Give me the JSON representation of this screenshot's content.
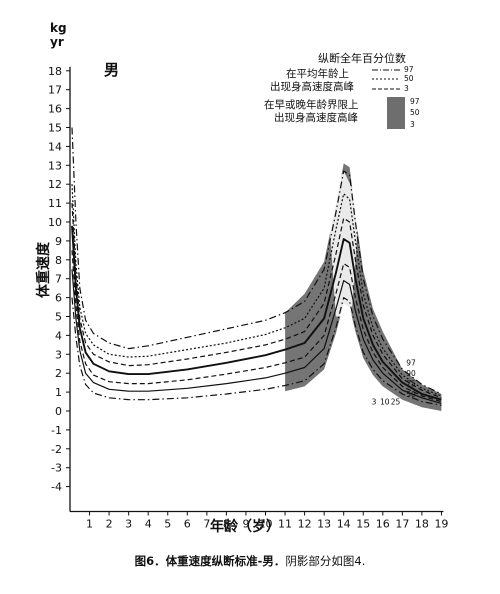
{
  "chart_data": {
    "type": "line",
    "ylabel_unit_top": "kg",
    "ylabel_unit_bottom": "yr",
    "ylabel": "体重速度",
    "xlabel": "年龄（岁）",
    "xlim": [
      0,
      19
    ],
    "ylim": [
      -5,
      18
    ],
    "x_ticks": [
      1,
      2,
      3,
      4,
      5,
      6,
      7,
      8,
      9,
      10,
      11,
      12,
      13,
      14,
      15,
      16,
      17,
      18,
      19
    ],
    "y_ticks": [
      -4,
      -3,
      -2,
      -1,
      0,
      1,
      2,
      3,
      4,
      5,
      6,
      7,
      8,
      9,
      10,
      11,
      12,
      13,
      14,
      15,
      16,
      17,
      18
    ],
    "sex_label": "男",
    "legend": {
      "title": "纵断全年百分位数",
      "group1_line1": "在平均年龄上",
      "group1_line2": "出现身高速度高峰",
      "group1_percentiles": [
        "97",
        "50",
        "3"
      ],
      "group2_line1": "在早或晚年龄界限上",
      "group2_line2": "出现身高速度高峰",
      "group2_percentiles": [
        "97",
        "50",
        "3"
      ]
    },
    "right_labels": [
      "97",
      "90",
      "75",
      "50"
    ],
    "bottom_labels": [
      "3",
      "10",
      "25"
    ],
    "series": [
      {
        "name": "97",
        "style": "dashdot",
        "x": [
          0.1,
          0.3,
          0.5,
          0.8,
          1.2,
          2,
          3,
          4,
          6,
          8,
          10,
          11,
          12,
          13,
          13.6,
          14,
          14.3,
          14.6,
          15,
          15.5,
          16,
          17,
          18,
          19
        ],
        "y": [
          15,
          10,
          6.5,
          4.8,
          4.1,
          3.6,
          3.3,
          3.45,
          3.9,
          4.35,
          4.8,
          5.2,
          5.8,
          7.5,
          10.5,
          12.7,
          12.5,
          10,
          7,
          5,
          3.8,
          2.2,
          1.4,
          0.9
        ]
      },
      {
        "name": "90",
        "style": "dotted",
        "x": [
          0.1,
          0.3,
          0.5,
          0.8,
          1.2,
          2,
          3,
          4,
          6,
          8,
          10,
          11,
          12,
          13,
          13.6,
          14,
          14.3,
          14.6,
          15,
          15.5,
          16,
          17,
          18,
          19
        ],
        "y": [
          12,
          7.8,
          5.5,
          4.1,
          3.5,
          3.0,
          2.85,
          2.9,
          3.25,
          3.6,
          4.05,
          4.4,
          4.9,
          6.5,
          9.6,
          11.5,
          11.2,
          9,
          6.2,
          4.4,
          3.3,
          1.9,
          1.2,
          0.8
        ]
      },
      {
        "name": "75",
        "style": "dashed",
        "x": [
          0.1,
          0.3,
          0.5,
          0.8,
          1.2,
          2,
          3,
          4,
          6,
          8,
          10,
          11,
          12,
          13,
          13.6,
          14,
          14.3,
          14.6,
          15,
          15.5,
          16,
          17,
          18,
          19
        ],
        "y": [
          11,
          7.2,
          4.9,
          3.6,
          3.0,
          2.6,
          2.4,
          2.45,
          2.75,
          3.1,
          3.5,
          3.8,
          4.2,
          5.7,
          8.3,
          10.2,
          10,
          8,
          5.6,
          4,
          3.0,
          1.7,
          1.1,
          0.7
        ]
      },
      {
        "name": "50",
        "style": "solid",
        "x": [
          0.1,
          0.3,
          0.5,
          0.8,
          1.2,
          2,
          3,
          4,
          6,
          8,
          10,
          11,
          12,
          13,
          13.6,
          14,
          14.3,
          14.6,
          15,
          15.5,
          16,
          17,
          18,
          19
        ],
        "y": [
          9.8,
          6.5,
          4.4,
          3.1,
          2.5,
          2.1,
          1.95,
          1.95,
          2.2,
          2.55,
          2.95,
          3.25,
          3.6,
          4.9,
          7.3,
          9.1,
          8.9,
          7,
          4.9,
          3.5,
          2.6,
          1.5,
          0.9,
          0.6
        ]
      },
      {
        "name": "25",
        "style": "dashed",
        "x": [
          0.1,
          0.3,
          0.5,
          0.8,
          1.2,
          2,
          3,
          4,
          6,
          8,
          10,
          11,
          12,
          13,
          13.6,
          14,
          14.3,
          14.6,
          15,
          15.5,
          16,
          17,
          18,
          19
        ],
        "y": [
          8.5,
          5.6,
          3.7,
          2.5,
          1.9,
          1.55,
          1.45,
          1.45,
          1.65,
          1.95,
          2.3,
          2.55,
          2.85,
          4.0,
          6.2,
          7.8,
          7.6,
          6,
          4.3,
          3.1,
          2.3,
          1.3,
          0.8,
          0.5
        ]
      },
      {
        "name": "10",
        "style": "solid",
        "x": [
          0.1,
          0.3,
          0.5,
          0.8,
          1.2,
          2,
          3,
          4,
          6,
          8,
          10,
          11,
          12,
          13,
          13.6,
          14,
          14.3,
          14.6,
          15,
          15.5,
          16,
          17,
          18,
          19
        ],
        "y": [
          7.5,
          4.9,
          3.2,
          2.0,
          1.5,
          1.15,
          1.05,
          1.05,
          1.2,
          1.45,
          1.75,
          2.0,
          2.3,
          3.3,
          5.4,
          6.9,
          6.7,
          5.3,
          3.8,
          2.7,
          2.0,
          1.1,
          0.7,
          0.4
        ]
      },
      {
        "name": "3",
        "style": "dashdot",
        "x": [
          0.1,
          0.3,
          0.5,
          0.8,
          1.2,
          2,
          3,
          4,
          6,
          8,
          10,
          11,
          12,
          13,
          13.6,
          14,
          14.3,
          14.6,
          15,
          15.5,
          16,
          17,
          18,
          19
        ],
        "y": [
          6,
          3.9,
          2.4,
          1.4,
          0.95,
          0.7,
          0.6,
          0.6,
          0.7,
          0.9,
          1.15,
          1.35,
          1.6,
          2.5,
          4.4,
          6.0,
          5.8,
          4.5,
          3.1,
          2.2,
          1.6,
          0.9,
          0.5,
          0.3
        ]
      }
    ]
  },
  "caption": {
    "bold_part": "图6．体重速度纵断标准-男．",
    "rest_part": "阴影部分如图4."
  },
  "colors": {
    "shade": "#6e6e6e",
    "ink": "#111111"
  }
}
